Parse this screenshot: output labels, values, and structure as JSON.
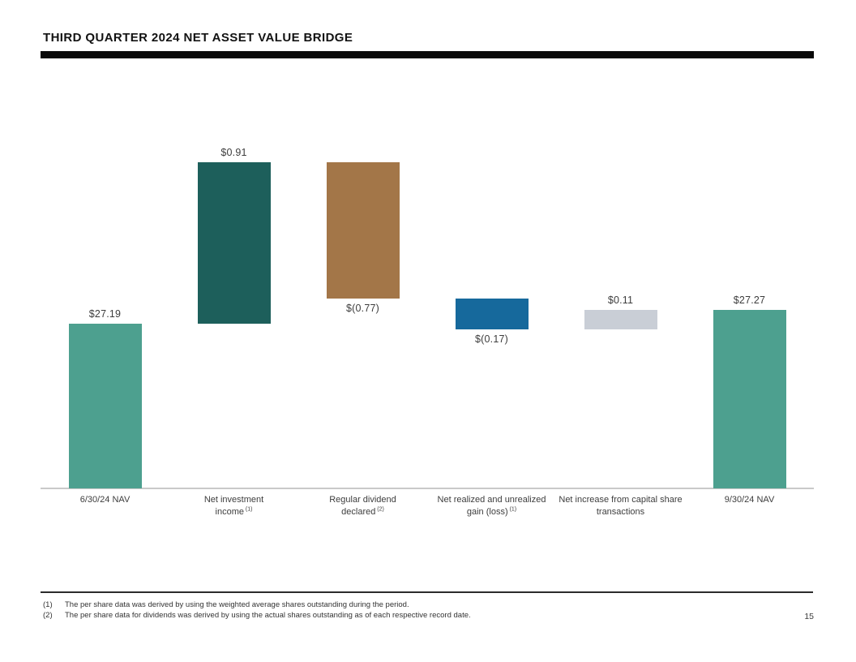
{
  "header": {
    "title": "THIRD QUARTER 2024 NET ASSET VALUE BRIDGE"
  },
  "chart_data": {
    "type": "bar",
    "subtype": "waterfall",
    "title": "Third Quarter 2024 Net Asset Value Bridge",
    "xlabel": "",
    "ylabel": "",
    "grid": false,
    "legend": "none",
    "ylim": [
      26.26,
      28.56
    ],
    "baseline_color": "#c9c9c9",
    "categories": [
      {
        "label_lines": [
          "6/30/24 NAV"
        ],
        "footnote_sup": "",
        "value": 27.19,
        "value_label": "$27.19",
        "is_total": true,
        "color": "#4da08f",
        "label_pos": "above"
      },
      {
        "label_lines": [
          "Net investment",
          "income"
        ],
        "footnote_sup": "(1)",
        "value": 0.91,
        "value_label": "$0.91",
        "is_total": false,
        "color": "#1d5f5b",
        "label_pos": "above"
      },
      {
        "label_lines": [
          "Regular dividend",
          "declared"
        ],
        "footnote_sup": "(2)",
        "value": -0.77,
        "value_label": "$(0.77)",
        "is_total": false,
        "color": "#a37648",
        "label_pos": "below"
      },
      {
        "label_lines": [
          "Net realized and unrealized",
          "gain (loss)"
        ],
        "footnote_sup": "(1)",
        "value": -0.17,
        "value_label": "$(0.17)",
        "is_total": false,
        "color": "#16699c",
        "label_pos": "below"
      },
      {
        "label_lines": [
          "Net increase from capital share",
          "transactions"
        ],
        "footnote_sup": "",
        "value": 0.11,
        "value_label": "$0.11",
        "is_total": false,
        "color": "#c9ced6",
        "label_pos": "above"
      },
      {
        "label_lines": [
          "9/30/24 NAV"
        ],
        "footnote_sup": "",
        "value": 27.27,
        "value_label": "$27.27",
        "is_total": true,
        "color": "#4da08f",
        "label_pos": "above"
      }
    ]
  },
  "footnotes": [
    {
      "marker": "(1)",
      "text": "The per share data was derived by using the weighted average shares outstanding during the period."
    },
    {
      "marker": "(2)",
      "text": "The per share data for dividends was derived by using the actual shares outstanding as of each respective record date."
    }
  ],
  "page_number": "15"
}
